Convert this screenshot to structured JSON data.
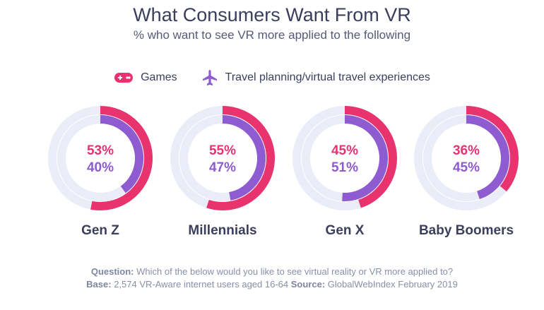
{
  "title": "What Consumers Want From VR",
  "subtitle": "% who want to see VR more applied to the following",
  "colors": {
    "games": "#e8336f",
    "travel": "#8e5bd0",
    "track": "#eaedf8"
  },
  "legend": [
    {
      "label": "Games",
      "icon": "gamepad-icon"
    },
    {
      "label": "Travel planning/virtual travel experiences",
      "icon": "airplane-icon"
    }
  ],
  "chart_data": {
    "type": "donut",
    "categories": [
      "Gen Z",
      "Millennials",
      "Gen X",
      "Baby Boomers"
    ],
    "series": [
      {
        "name": "Games",
        "values": [
          53,
          55,
          45,
          36
        ]
      },
      {
        "name": "Travel planning/virtual travel experiences",
        "values": [
          40,
          47,
          51,
          45
        ]
      }
    ],
    "unit": "%"
  },
  "footer": {
    "question_label": "Question:",
    "question": "Which of the below would you like to see virtual reality or VR more applied to?",
    "base_label": "Base:",
    "base": "2,574 VR-Aware internet users aged 16-64",
    "source_label": "Source:",
    "source": "GlobalWebIndex February 2019"
  }
}
